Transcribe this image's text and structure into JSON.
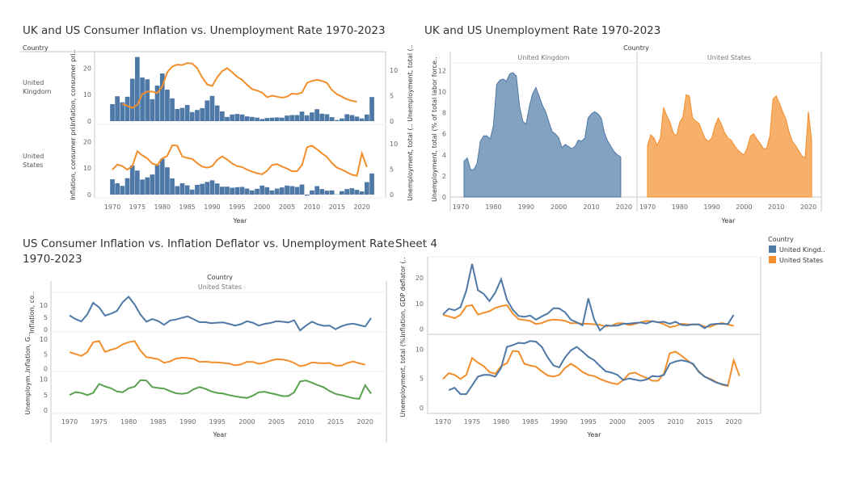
{
  "colors": {
    "uk": "#4e79a7",
    "us": "#f28e2b",
    "green": "#59a14f",
    "axis": "#c8c8c8",
    "grid": "#eeeeee"
  },
  "years": [
    1970,
    1971,
    1972,
    1973,
    1974,
    1975,
    1976,
    1977,
    1978,
    1979,
    1980,
    1981,
    1982,
    1983,
    1984,
    1985,
    1986,
    1987,
    1988,
    1989,
    1990,
    1991,
    1992,
    1993,
    1994,
    1995,
    1996,
    1997,
    1998,
    1999,
    2000,
    2001,
    2002,
    2003,
    2004,
    2005,
    2006,
    2007,
    2008,
    2009,
    2010,
    2011,
    2012,
    2013,
    2014,
    2015,
    2016,
    2017,
    2018,
    2019,
    2020,
    2021,
    2022
  ],
  "xticks": [
    "1970",
    "1975",
    "1980",
    "1985",
    "1990",
    "1995",
    "2000",
    "2005",
    "2010",
    "2015",
    "2020"
  ],
  "legend": {
    "title": "Country",
    "items": [
      "United Kingd..",
      "United States"
    ]
  },
  "chart_data": [
    {
      "type": "bar",
      "title": "UK and US Consumer Inflation vs. Unemployment Rate 1970-2023",
      "header": "Country",
      "xlabel": "Year",
      "rows": [
        {
          "label": "United Kingdom",
          "left_axis_label": "Inflation, consumer pri..",
          "right_axis_label": "Unemployment, total (.. Unemployment, total (..",
          "left_ticks": [
            "20",
            "10",
            "0"
          ],
          "right_ticks": [
            "10",
            "5",
            "0"
          ],
          "left_ylim": [
            0,
            25
          ],
          "right_ylim": [
            0,
            13
          ],
          "bar_values": [
            6.4,
            9.4,
            7.1,
            9.2,
            16.0,
            24.2,
            16.5,
            15.8,
            8.3,
            13.4,
            18.0,
            11.9,
            8.6,
            4.6,
            5.0,
            6.1,
            3.4,
            4.2,
            4.9,
            7.8,
            9.5,
            5.9,
            3.7,
            1.6,
            2.5,
            2.7,
            2.5,
            1.8,
            1.6,
            1.3,
            0.8,
            1.2,
            1.3,
            1.4,
            1.3,
            2.1,
            2.3,
            2.3,
            3.6,
            2.2,
            3.3,
            4.5,
            2.8,
            2.6,
            1.5,
            0.4,
            1.0,
            2.6,
            2.3,
            1.7,
            1.0,
            2.5,
            9.1
          ],
          "line_values": [
            null,
            null,
            3.4,
            3.0,
            2.6,
            3.2,
            5.3,
            5.8,
            5.8,
            5.5,
            6.8,
            9.6,
            10.7,
            11.1,
            11.0,
            11.4,
            11.3,
            10.4,
            8.6,
            7.2,
            6.9,
            8.6,
            9.8,
            10.4,
            9.6,
            8.7,
            8.1,
            7.1,
            6.3,
            6.0,
            5.6,
            4.7,
            5.0,
            4.8,
            4.6,
            4.8,
            5.4,
            5.3,
            5.6,
            7.5,
            7.9,
            8.1,
            7.9,
            7.5,
            6.1,
            5.3,
            4.8,
            4.3,
            4.0,
            3.8,
            null,
            null,
            null
          ]
        },
        {
          "label": "United States",
          "left_axis_label": "Inflation, consumer pri..",
          "right_axis_label": "",
          "left_ticks": [
            "20",
            "10",
            "0"
          ],
          "right_ticks": [
            "10",
            "5",
            "0"
          ],
          "left_ylim": [
            0,
            25
          ],
          "right_ylim": [
            0,
            13
          ],
          "bar_values": [
            5.8,
            4.3,
            3.3,
            6.2,
            11.0,
            9.1,
            5.7,
            6.5,
            7.6,
            11.3,
            13.5,
            10.3,
            6.1,
            3.2,
            4.3,
            3.5,
            1.9,
            3.7,
            4.1,
            4.8,
            5.4,
            4.2,
            3.0,
            3.0,
            2.6,
            2.8,
            2.9,
            2.3,
            1.6,
            2.2,
            3.4,
            2.8,
            1.6,
            2.3,
            2.7,
            3.4,
            3.2,
            2.9,
            3.8,
            -0.4,
            1.6,
            3.2,
            2.1,
            1.5,
            1.6,
            0.1,
            1.3,
            2.1,
            2.4,
            1.8,
            1.2,
            4.7,
            8.0
          ],
          "line_values": [
            4.9,
            5.9,
            5.6,
            4.9,
            5.6,
            8.5,
            7.7,
            7.1,
            6.1,
            5.8,
            7.1,
            7.6,
            9.7,
            9.6,
            7.5,
            7.2,
            7.0,
            6.2,
            5.5,
            5.3,
            5.6,
            6.8,
            7.5,
            6.9,
            6.1,
            5.6,
            5.4,
            4.9,
            4.5,
            4.2,
            4.0,
            4.7,
            5.8,
            6.0,
            5.5,
            5.1,
            4.6,
            4.6,
            5.8,
            9.3,
            9.6,
            8.9,
            8.1,
            7.4,
            6.2,
            5.3,
            4.9,
            4.4,
            3.9,
            3.7,
            8.1,
            5.4,
            null
          ]
        }
      ]
    },
    {
      "type": "area",
      "title": "UK and US Unemployment Rate 1970-2023",
      "header": "Country",
      "xlabel": "Year",
      "ylabel": "Unemployment, total (% of total labor force..",
      "yticks": [
        "12",
        "10",
        "8",
        "6",
        "4",
        "2",
        "0"
      ],
      "ylim": [
        0,
        12.8
      ],
      "panes": [
        {
          "label": "United Kingdom",
          "values": [
            null,
            3.4,
            3.7,
            2.6,
            2.6,
            3.2,
            5.3,
            5.8,
            5.8,
            5.5,
            6.8,
            10.7,
            11.1,
            11.2,
            11.0,
            11.7,
            11.8,
            11.5,
            8.6,
            7.2,
            6.9,
            8.6,
            9.8,
            10.4,
            9.6,
            8.7,
            8.1,
            7.1,
            6.2,
            6.0,
            5.6,
            4.7,
            5.0,
            4.8,
            4.6,
            4.8,
            5.4,
            5.3,
            5.6,
            7.5,
            7.9,
            8.1,
            7.9,
            7.5,
            6.1,
            5.3,
            4.8,
            4.3,
            4.0,
            3.8,
            null,
            null,
            null
          ]
        },
        {
          "label": "United States",
          "values": [
            4.9,
            5.9,
            5.6,
            4.9,
            5.6,
            8.5,
            7.7,
            7.1,
            6.1,
            5.8,
            7.1,
            7.6,
            9.7,
            9.6,
            7.5,
            7.2,
            7.0,
            6.2,
            5.5,
            5.3,
            5.6,
            6.8,
            7.5,
            6.9,
            6.1,
            5.6,
            5.4,
            4.9,
            4.5,
            4.2,
            4.0,
            4.7,
            5.8,
            6.0,
            5.5,
            5.1,
            4.6,
            4.6,
            5.8,
            9.3,
            9.6,
            8.9,
            8.1,
            7.4,
            6.2,
            5.3,
            4.9,
            4.4,
            3.9,
            3.7,
            8.1,
            5.4,
            null
          ]
        }
      ]
    },
    {
      "type": "line",
      "title": "US Consumer Inflation vs. Inflation Deflator vs. Unemployment Rate 1970-2023",
      "header": "Country",
      "pane_header": "United States",
      "xlabel": "Year",
      "rows": [
        {
          "axis_label": "Inflation, co..",
          "ticks": [
            "10",
            "5",
            "0"
          ],
          "ylim": [
            -1,
            15
          ],
          "values": [
            5.8,
            4.3,
            3.3,
            6.2,
            11.0,
            9.1,
            5.7,
            6.5,
            7.6,
            11.3,
            13.5,
            10.3,
            6.1,
            3.2,
            4.3,
            3.5,
            1.9,
            3.7,
            4.1,
            4.8,
            5.4,
            4.2,
            3.0,
            3.0,
            2.6,
            2.8,
            2.9,
            2.3,
            1.6,
            2.2,
            3.4,
            2.8,
            1.6,
            2.3,
            2.7,
            3.4,
            3.2,
            2.9,
            3.8,
            -0.4,
            1.6,
            3.2,
            2.1,
            1.5,
            1.6,
            0.1,
            1.3,
            2.1,
            2.4,
            1.8,
            1.2,
            4.7,
            null
          ]
        },
        {
          "axis_label": "Inflation, G..",
          "ticks": [
            "10",
            "5",
            "0"
          ],
          "ylim": [
            -1,
            12
          ],
          "values": [
            5.6,
            5.0,
            4.3,
            5.6,
            9.0,
            9.4,
            5.7,
            6.4,
            7.0,
            8.3,
            9.0,
            9.4,
            6.1,
            3.9,
            3.6,
            3.2,
            2.0,
            2.4,
            3.4,
            3.7,
            3.6,
            3.3,
            2.3,
            2.4,
            2.1,
            2.1,
            1.9,
            1.7,
            1.1,
            1.4,
            2.3,
            2.3,
            1.6,
            2.0,
            2.7,
            3.2,
            3.1,
            2.7,
            1.9,
            0.8,
            1.2,
            2.1,
            1.9,
            1.8,
            1.9,
            1.0,
            1.0,
            1.9,
            2.4,
            1.8,
            1.3,
            null,
            null
          ]
        },
        {
          "axis_label": "Unemploym..",
          "ticks": [
            "10",
            "5",
            "0"
          ],
          "ylim": [
            -1,
            12
          ],
          "values": [
            4.9,
            5.9,
            5.6,
            4.9,
            5.6,
            8.5,
            7.7,
            7.1,
            6.1,
            5.8,
            7.1,
            7.6,
            9.7,
            9.6,
            7.5,
            7.2,
            7.0,
            6.2,
            5.5,
            5.3,
            5.6,
            6.8,
            7.5,
            6.9,
            6.1,
            5.6,
            5.4,
            4.9,
            4.5,
            4.2,
            4.0,
            4.7,
            5.8,
            6.0,
            5.5,
            5.1,
            4.6,
            4.6,
            5.8,
            9.3,
            9.6,
            8.9,
            8.1,
            7.4,
            6.2,
            5.3,
            4.9,
            4.4,
            3.9,
            3.7,
            8.1,
            5.4,
            null
          ]
        }
      ]
    },
    {
      "type": "line",
      "title": "Sheet 4",
      "xlabel": "Year",
      "rows": [
        {
          "axis_label": "Inflation, GDP deflator (..",
          "ticks": [
            "20",
            "10",
            "0"
          ],
          "ylim": [
            -2,
            27
          ],
          "uk": [
            5.8,
            8.0,
            7.4,
            8.6,
            15.0,
            25.5,
            15.2,
            13.8,
            11.0,
            14.3,
            19.5,
            11.5,
            7.6,
            5.2,
            4.8,
            5.3,
            3.7,
            5.0,
            6.1,
            8.2,
            8.1,
            6.6,
            3.7,
            2.7,
            1.5,
            12.0,
            3.8,
            -0.5,
            1.5,
            1.3,
            1.4,
            2.1,
            2.2,
            2.4,
            2.6,
            2.2,
            3.1,
            2.7,
            2.9,
            2.1,
            2.9,
            1.7,
            1.5,
            1.9,
            1.8,
            0.4,
            1.8,
            2.1,
            2.1,
            2.0,
            5.6,
            null,
            null
          ],
          "us": [
            5.6,
            5.0,
            4.3,
            5.6,
            9.0,
            9.4,
            5.7,
            6.4,
            7.0,
            8.3,
            9.0,
            9.4,
            6.1,
            3.9,
            3.6,
            3.2,
            2.0,
            2.4,
            3.4,
            3.7,
            3.6,
            3.3,
            2.3,
            2.4,
            2.1,
            2.1,
            1.9,
            1.7,
            1.1,
            1.4,
            2.3,
            2.3,
            1.6,
            2.0,
            2.7,
            3.2,
            3.1,
            2.7,
            1.9,
            0.8,
            1.2,
            2.1,
            1.9,
            1.8,
            1.9,
            1.0,
            1.0,
            1.9,
            2.4,
            1.8,
            1.3,
            null,
            null
          ]
        },
        {
          "axis_label": "Unemployment, total (%..",
          "ticks": [
            "10",
            "5",
            "0"
          ],
          "ylim": [
            -1,
            12
          ],
          "uk": [
            null,
            3.0,
            3.4,
            2.3,
            2.3,
            3.8,
            5.3,
            5.6,
            5.6,
            5.3,
            6.8,
            10.4,
            10.7,
            11.1,
            11.0,
            11.4,
            11.3,
            10.4,
            8.6,
            7.2,
            6.9,
            8.6,
            9.8,
            10.4,
            9.6,
            8.7,
            8.1,
            7.1,
            6.2,
            6.0,
            5.6,
            4.7,
            5.0,
            4.8,
            4.6,
            4.8,
            5.4,
            5.3,
            5.6,
            7.5,
            7.9,
            8.1,
            7.9,
            7.5,
            6.1,
            5.3,
            4.8,
            4.3,
            4.0,
            3.8,
            null,
            null,
            null
          ],
          "us": [
            4.9,
            5.9,
            5.6,
            4.9,
            5.6,
            8.5,
            7.7,
            7.1,
            6.1,
            5.8,
            7.1,
            7.6,
            9.7,
            9.6,
            7.5,
            7.2,
            7.0,
            6.2,
            5.5,
            5.3,
            5.6,
            6.8,
            7.5,
            6.9,
            6.1,
            5.6,
            5.4,
            4.9,
            4.5,
            4.2,
            4.0,
            4.7,
            5.8,
            6.0,
            5.5,
            5.1,
            4.6,
            4.6,
            5.8,
            9.3,
            9.6,
            8.9,
            8.1,
            7.4,
            6.2,
            5.3,
            4.9,
            4.4,
            3.9,
            3.7,
            8.1,
            5.4,
            null
          ]
        }
      ]
    }
  ]
}
